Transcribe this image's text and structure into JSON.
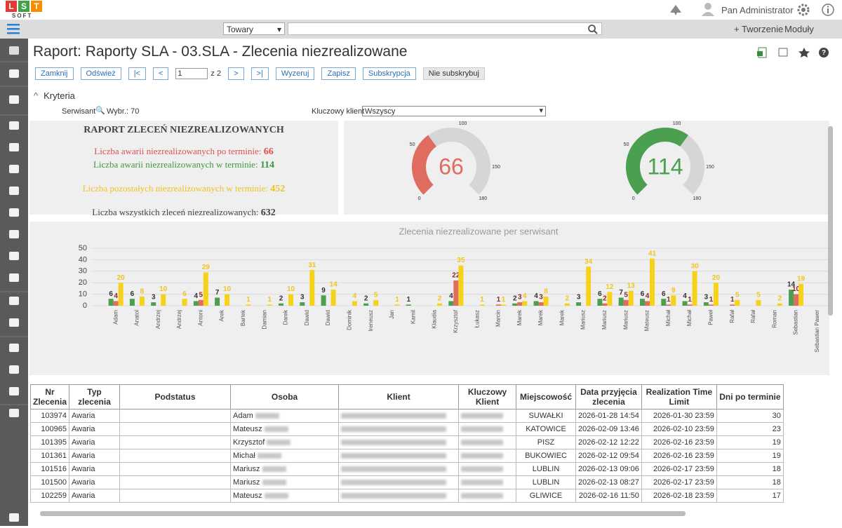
{
  "header": {
    "logo": "LST",
    "logo_sub": "SOFT",
    "user": "Pan Administrator"
  },
  "toolbar": {
    "search_scope": "Towary",
    "create": "Tworzenie",
    "modules": "Moduły"
  },
  "page": {
    "title": "Raport: Raporty SLA - 03.SLA - Zlecenia niezrealizowane"
  },
  "nav": {
    "buttons_left": [
      "Zamknij",
      "Odśwież",
      "|<",
      "<"
    ],
    "page_input": "1",
    "page_of": "z 2",
    "buttons_right": [
      ">",
      ">|",
      "Wyzeruj",
      "Zapisz",
      "Subskrypcja",
      "Nie subskrybuj"
    ]
  },
  "criteria": {
    "heading": "Kryteria",
    "serwisant_label": "Serwisant",
    "serwisant_value": "Wybr.: 70",
    "client_label": "Kluczowy klient",
    "client_value": "Wszyscy"
  },
  "summary": {
    "title": "RAPORT ZLECEŃ NIEZREALIZOWANYCH",
    "lines": [
      {
        "label": "Liczba awarii niezrealizowanych po terminie:",
        "value": 66,
        "color": "#d9534f"
      },
      {
        "label": "Liczba awarii niezrealizowanych w terminie:",
        "value": 114,
        "color": "#3c9a3c"
      },
      {
        "label": "Liczba pozostałych niezrealizowanych w terminie:",
        "value": 452,
        "color": "#f0c419"
      },
      {
        "label": "Liczba wszystkich zleceń niezrealizowanych:",
        "value": 632,
        "color": "#444444"
      }
    ]
  },
  "gauges": [
    {
      "value": 66,
      "min": 0,
      "max": 180,
      "ticks": [
        0,
        50,
        100,
        150,
        180
      ],
      "color": "#e06b5f"
    },
    {
      "value": 114,
      "min": 0,
      "max": 180,
      "ticks": [
        0,
        50,
        100,
        150,
        180
      ],
      "color": "#4aa04f"
    }
  ],
  "chart_data": {
    "type": "bar",
    "title": "Zlecenia niezrealizowane per serwisant",
    "categories": [
      "Adam",
      "Anatol",
      "Andrzej",
      "Andrzej",
      "Antoni",
      "Arek",
      "Bartek",
      "Damian",
      "Darek",
      "Dawid",
      "Dawid",
      "Dominik",
      "Ireneusz",
      "Jan",
      "Kamil",
      "Klaudia",
      "Krzysztof",
      "Łukasz",
      "Marcin",
      "Marek",
      "Marek",
      "Marek",
      "Mariusz",
      "Mariusz",
      "Mariusz",
      "Mateusz",
      "Michał",
      "Michał",
      "Paweł",
      "Rafał",
      "Rafał",
      "Roman",
      "Sebastian",
      "Sebastian Pawer"
    ],
    "series": [
      {
        "color": "#4aa04f",
        "label_color": "#333333",
        "values": [
          6,
          6,
          3,
          null,
          4,
          7,
          null,
          null,
          2,
          3,
          9,
          null,
          2,
          null,
          1,
          null,
          4,
          null,
          null,
          2,
          4,
          null,
          3,
          6,
          7,
          6,
          6,
          4,
          3,
          null,
          null,
          null,
          14,
          null
        ]
      },
      {
        "color": "#e06b5f",
        "label_color": "#8b2a22",
        "values": [
          4,
          null,
          null,
          null,
          5,
          null,
          null,
          null,
          null,
          null,
          null,
          null,
          null,
          null,
          null,
          null,
          22,
          null,
          1,
          3,
          3,
          null,
          null,
          2,
          5,
          4,
          1,
          1,
          1,
          1,
          null,
          null,
          10,
          null
        ]
      },
      {
        "color": "#f7d21b",
        "label_color": "#f0c419",
        "values": [
          20,
          8,
          10,
          6,
          29,
          10,
          1,
          1,
          10,
          31,
          14,
          4,
          5,
          1,
          null,
          2,
          35,
          1,
          1,
          4,
          8,
          2,
          34,
          12,
          13,
          41,
          9,
          30,
          20,
          5,
          5,
          2,
          19,
          null
        ]
      }
    ],
    "ylim": [
      0,
      50
    ],
    "yticks": [
      0,
      10,
      20,
      30,
      40,
      50
    ],
    "grid": true
  },
  "table": {
    "headers": [
      "Nr Zlecenia",
      "Typ zlecenia",
      "Podstatus",
      "Osoba",
      "Klient",
      "Kluczowy Klient",
      "Miejscowość",
      "Data przyjęcia zlecenia",
      "Realization Time Limit",
      "Dni po terminie"
    ],
    "rows": [
      [
        103974,
        "Awaria",
        null,
        "Adam",
        null,
        null,
        "SUWAŁKI",
        "2026-01-28 14:54",
        "2026-01-30 23:59",
        30
      ],
      [
        100965,
        "Awaria",
        null,
        "Mateusz",
        null,
        null,
        "KATOWICE",
        "2026-02-09 13:46",
        "2026-02-10 23:59",
        23
      ],
      [
        101395,
        "Awaria",
        null,
        "Krzysztof",
        null,
        null,
        "PISZ",
        "2026-02-12 12:22",
        "2026-02-16 23:59",
        19
      ],
      [
        101361,
        "Awaria",
        null,
        "Michał",
        null,
        null,
        "BUKOWIEC",
        "2026-02-12 09:54",
        "2026-02-16 23:59",
        19
      ],
      [
        101516,
        "Awaria",
        null,
        "Mariusz",
        null,
        null,
        "LUBLIN",
        "2026-02-13 09:06",
        "2026-02-17 23:59",
        18
      ],
      [
        101500,
        "Awaria",
        null,
        "Mariusz",
        null,
        null,
        "LUBLIN",
        "2026-02-13 08:27",
        "2026-02-17 23:59",
        18
      ],
      [
        102259,
        "Awaria",
        null,
        "Mateusz",
        null,
        null,
        "GLIWICE",
        "2026-02-16 11:50",
        "2026-02-18 23:59",
        17
      ]
    ]
  }
}
